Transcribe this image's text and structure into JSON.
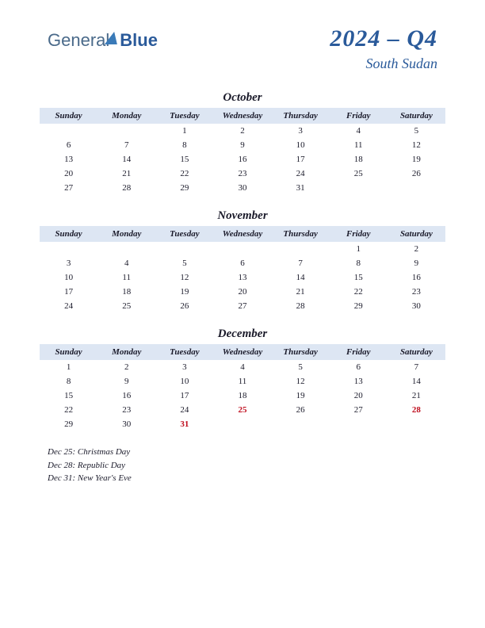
{
  "logo": {
    "part1": "General",
    "part2": "Blue"
  },
  "header": {
    "title": "2024 – Q4",
    "country": "South Sudan"
  },
  "colors": {
    "header_bg": "#dde6f3",
    "accent": "#2a5a9a",
    "holiday": "#c01020",
    "text": "#1a1a2a",
    "background": "#ffffff"
  },
  "day_headers": [
    "Sunday",
    "Monday",
    "Tuesday",
    "Wednesday",
    "Thursday",
    "Friday",
    "Saturday"
  ],
  "months": [
    {
      "name": "October",
      "weeks": [
        [
          "",
          "",
          "1",
          "2",
          "3",
          "4",
          "5"
        ],
        [
          "6",
          "7",
          "8",
          "9",
          "10",
          "11",
          "12"
        ],
        [
          "13",
          "14",
          "15",
          "16",
          "17",
          "18",
          "19"
        ],
        [
          "20",
          "21",
          "22",
          "23",
          "24",
          "25",
          "26"
        ],
        [
          "27",
          "28",
          "29",
          "30",
          "31",
          "",
          ""
        ]
      ],
      "holiday_cells": []
    },
    {
      "name": "November",
      "weeks": [
        [
          "",
          "",
          "",
          "",
          "",
          "1",
          "2"
        ],
        [
          "3",
          "4",
          "5",
          "6",
          "7",
          "8",
          "9"
        ],
        [
          "10",
          "11",
          "12",
          "13",
          "14",
          "15",
          "16"
        ],
        [
          "17",
          "18",
          "19",
          "20",
          "21",
          "22",
          "23"
        ],
        [
          "24",
          "25",
          "26",
          "27",
          "28",
          "29",
          "30"
        ]
      ],
      "holiday_cells": []
    },
    {
      "name": "December",
      "weeks": [
        [
          "1",
          "2",
          "3",
          "4",
          "5",
          "6",
          "7"
        ],
        [
          "8",
          "9",
          "10",
          "11",
          "12",
          "13",
          "14"
        ],
        [
          "15",
          "16",
          "17",
          "18",
          "19",
          "20",
          "21"
        ],
        [
          "22",
          "23",
          "24",
          "25",
          "26",
          "27",
          "28"
        ],
        [
          "29",
          "30",
          "31",
          "",
          "",
          "",
          ""
        ]
      ],
      "holiday_cells": [
        "25",
        "28",
        "31"
      ]
    }
  ],
  "holidays": [
    "Dec 25: Christmas Day",
    "Dec 28: Republic Day",
    "Dec 31: New Year's Eve"
  ]
}
